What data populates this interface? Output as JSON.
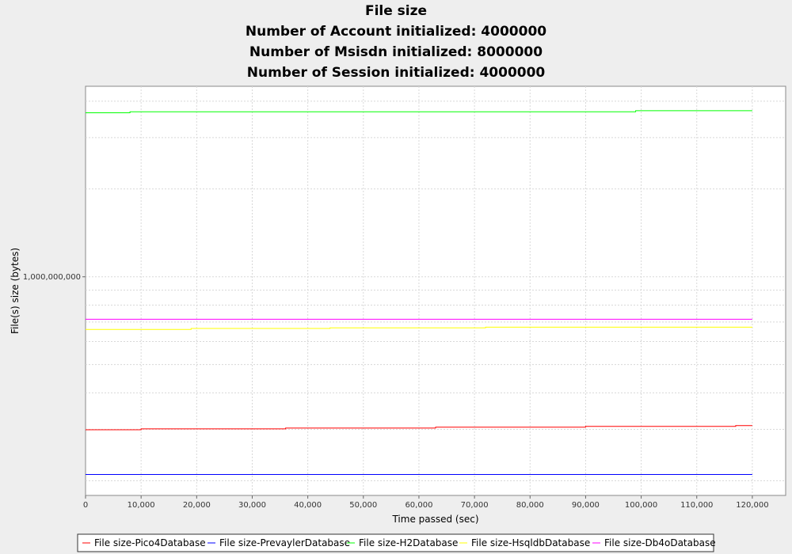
{
  "chart_data": {
    "type": "line",
    "title": "File size",
    "subtitles": [
      "Number of Account initialized: 4000000",
      "Number of Msisdn initialized: 8000000",
      "Number of Session initialized: 4000000"
    ],
    "xlabel": "Time passed (sec)",
    "ylabel": "File(s) size (bytes)",
    "x_scale": "linear",
    "y_scale": "log",
    "xlim": [
      0,
      126000
    ],
    "ylim": [
      178000000,
      4500000000
    ],
    "x_ticks": [
      0,
      10000,
      20000,
      30000,
      40000,
      50000,
      60000,
      70000,
      80000,
      90000,
      100000,
      110000,
      120000
    ],
    "x_tick_labels": [
      "0",
      "10,000",
      "20,000",
      "30,000",
      "40,000",
      "50,000",
      "60,000",
      "70,000",
      "80,000",
      "90,000",
      "100,000",
      "110,000",
      "120,000"
    ],
    "y_ticks": [
      1000000000
    ],
    "y_tick_labels": [
      "1,000,000,000"
    ],
    "grid": true,
    "legend_position": "bottom",
    "series": [
      {
        "name": "File size-Pico4Database",
        "color": "#ff0000",
        "x": [
          0,
          10000,
          10000,
          36000,
          36000,
          63000,
          63000,
          90000,
          90000,
          117000,
          117000,
          120000
        ],
        "y": [
          299000000,
          299000000,
          301000000,
          301000000,
          303000000,
          303000000,
          305000000,
          305000000,
          307000000,
          307000000,
          309000000,
          309000000
        ]
      },
      {
        "name": "File size-PrevaylerDatabase",
        "color": "#0000ff",
        "x": [
          0,
          120000
        ],
        "y": [
          210000000,
          210000000
        ]
      },
      {
        "name": "File size-H2Database",
        "color": "#00ff00",
        "x": [
          0,
          8000,
          8000,
          99000,
          99000,
          120000
        ],
        "y": [
          3650000000,
          3650000000,
          3680000000,
          3680000000,
          3710000000,
          3710000000
        ]
      },
      {
        "name": "File size-HsqldbDatabase",
        "color": "#ffff00",
        "x": [
          0,
          19000,
          19000,
          44000,
          44000,
          72000,
          72000,
          120000
        ],
        "y": [
          660000000,
          660000000,
          665000000,
          665000000,
          668000000,
          668000000,
          672000000,
          672000000
        ]
      },
      {
        "name": "File size-Db4oDatabase",
        "color": "#ff00ff",
        "x": [
          0,
          120000
        ],
        "y": [
          715000000,
          715000000
        ]
      }
    ]
  }
}
